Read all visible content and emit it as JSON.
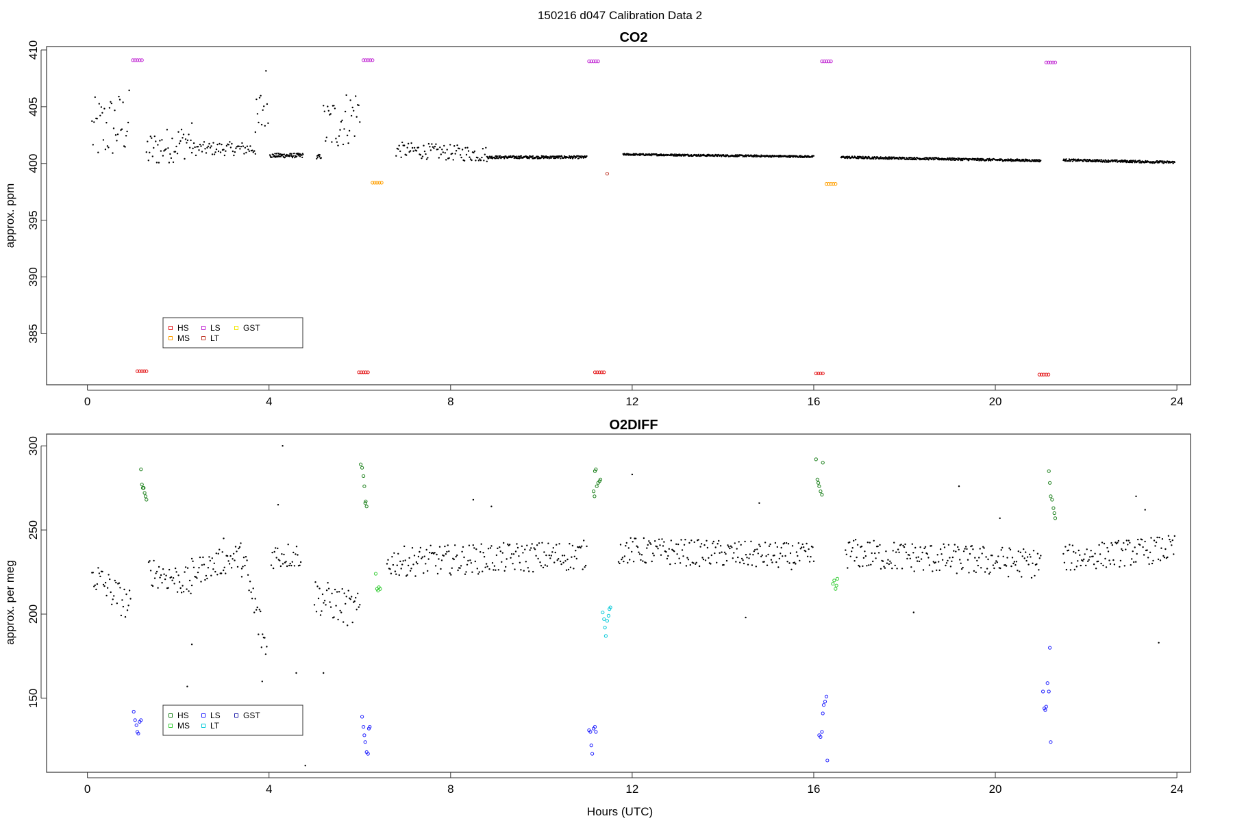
{
  "page_title": "150216   d047   Calibration Data 2",
  "chart_data": [
    {
      "type": "scatter",
      "title": "CO2",
      "xlabel": "",
      "ylabel": "approx. ppm",
      "xlim": [
        -0.9,
        24.3
      ],
      "ylim": [
        380.5,
        410.3
      ],
      "xticks": [
        0,
        4,
        8,
        12,
        16,
        20,
        24
      ],
      "yticks": [
        385,
        390,
        395,
        400,
        405,
        410
      ],
      "grid": false,
      "legend_position": "bottom-left",
      "legend": [
        {
          "label": "HS",
          "color": "#e41a1c"
        },
        {
          "label": "MS",
          "color": "#ff9f00"
        },
        {
          "label": "LS",
          "color": "#c026d3"
        },
        {
          "label": "LT",
          "color": "#c0392b"
        },
        {
          "label": "GST",
          "color": "#f2e600"
        }
      ],
      "series": [
        {
          "name": "HS",
          "color": "#e41a1c",
          "marker": "circle",
          "points": [
            [
              1.1,
              381.7
            ],
            [
              1.15,
              381.7
            ],
            [
              1.2,
              381.7
            ],
            [
              1.25,
              381.7
            ],
            [
              1.3,
              381.7
            ],
            [
              5.98,
              381.6
            ],
            [
              6.03,
              381.6
            ],
            [
              6.08,
              381.6
            ],
            [
              6.13,
              381.6
            ],
            [
              6.18,
              381.6
            ],
            [
              11.18,
              381.6
            ],
            [
              11.23,
              381.6
            ],
            [
              11.28,
              381.6
            ],
            [
              11.33,
              381.6
            ],
            [
              11.38,
              381.6
            ],
            [
              16.05,
              381.5
            ],
            [
              16.1,
              381.5
            ],
            [
              16.15,
              381.5
            ],
            [
              16.2,
              381.5
            ],
            [
              20.97,
              381.4
            ],
            [
              21.02,
              381.4
            ],
            [
              21.07,
              381.4
            ],
            [
              21.12,
              381.4
            ],
            [
              21.17,
              381.4
            ]
          ]
        },
        {
          "name": "MS",
          "color": "#ff9f00",
          "marker": "circle",
          "points": [
            [
              6.28,
              398.3
            ],
            [
              6.33,
              398.3
            ],
            [
              6.38,
              398.3
            ],
            [
              6.43,
              398.3
            ],
            [
              6.48,
              398.3
            ],
            [
              16.28,
              398.2
            ],
            [
              16.33,
              398.2
            ],
            [
              16.38,
              398.2
            ],
            [
              16.43,
              398.2
            ],
            [
              16.48,
              398.2
            ]
          ]
        },
        {
          "name": "LS",
          "color": "#c026d3",
          "marker": "circle",
          "points": [
            [
              1.0,
              409.1
            ],
            [
              1.05,
              409.1
            ],
            [
              1.1,
              409.1
            ],
            [
              1.15,
              409.1
            ],
            [
              1.2,
              409.1
            ],
            [
              6.08,
              409.1
            ],
            [
              6.13,
              409.1
            ],
            [
              6.18,
              409.1
            ],
            [
              6.23,
              409.1
            ],
            [
              6.28,
              409.1
            ],
            [
              11.05,
              409.0
            ],
            [
              11.1,
              409.0
            ],
            [
              11.15,
              409.0
            ],
            [
              11.2,
              409.0
            ],
            [
              11.25,
              409.0
            ],
            [
              16.18,
              409.0
            ],
            [
              16.23,
              409.0
            ],
            [
              16.28,
              409.0
            ],
            [
              16.33,
              409.0
            ],
            [
              16.38,
              409.0
            ],
            [
              21.12,
              408.9
            ],
            [
              21.17,
              408.9
            ],
            [
              21.22,
              408.9
            ],
            [
              21.27,
              408.9
            ],
            [
              21.32,
              408.9
            ]
          ]
        },
        {
          "name": "LT",
          "color": "#c0392b",
          "marker": "circle",
          "points": [
            [
              11.45,
              399.1
            ]
          ]
        },
        {
          "name": "GST",
          "color": "#f2e600",
          "marker": "circle",
          "points": []
        }
      ],
      "ambient": {
        "color": "#000000",
        "segments": [
          {
            "x": [
              0.1,
              0.92
            ],
            "mean": 403.2,
            "spread": 3.0,
            "trend": 0.8
          },
          {
            "x": [
              1.3,
              2.3
            ],
            "mean": 401.6,
            "spread": 1.6,
            "trend": 1.0
          },
          {
            "x": [
              2.3,
              3.7
            ],
            "mean": 401.3,
            "spread": 0.6,
            "trend": 0.0
          },
          {
            "x": [
              3.7,
              3.98
            ],
            "mean": 404.5,
            "spread": 3.0,
            "trend": 4.0
          },
          {
            "x": [
              4.02,
              4.75
            ],
            "mean": 400.7,
            "spread": 0.2,
            "trend": 0.0
          },
          {
            "x": [
              5.05,
              5.15
            ],
            "mean": 400.6,
            "spread": 0.2,
            "trend": 0.0
          },
          {
            "x": [
              5.2,
              6.0
            ],
            "mean": 403.8,
            "spread": 2.5,
            "trend": 1.5
          },
          {
            "x": [
              6.8,
              8.8
            ],
            "mean": 401.0,
            "spread": 0.7,
            "trend": -0.4
          },
          {
            "x": [
              8.8,
              11.0
            ],
            "mean": 400.55,
            "spread": 0.12,
            "trend": 0.0
          },
          {
            "x": [
              11.8,
              16.0
            ],
            "mean": 400.7,
            "spread": 0.08,
            "trend": -0.2
          },
          {
            "x": [
              16.6,
              21.0
            ],
            "mean": 400.4,
            "spread": 0.1,
            "trend": -0.3
          },
          {
            "x": [
              21.5,
              23.95
            ],
            "mean": 400.2,
            "spread": 0.1,
            "trend": -0.2
          }
        ]
      }
    },
    {
      "type": "scatter",
      "title": "O2DIFF",
      "xlabel": "Hours (UTC)",
      "ylabel": "approx. per meg",
      "xlim": [
        -0.9,
        24.3
      ],
      "ylim": [
        106,
        307
      ],
      "xticks": [
        0,
        4,
        8,
        12,
        16,
        20,
        24
      ],
      "yticks": [
        150,
        200,
        250,
        300
      ],
      "grid": false,
      "legend_position": "bottom-left",
      "legend": [
        {
          "label": "HS",
          "color": "#1a7f1a"
        },
        {
          "label": "MS",
          "color": "#33cc33"
        },
        {
          "label": "LS",
          "color": "#1f1fff"
        },
        {
          "label": "LT",
          "color": "#00c8d8"
        },
        {
          "label": "GST",
          "color": "#2222aa"
        }
      ],
      "series": [
        {
          "name": "HS",
          "color": "#1a7f1a",
          "marker": "circle",
          "points": [
            [
              1.18,
              286
            ],
            [
              1.2,
              277
            ],
            [
              1.22,
              275
            ],
            [
              1.26,
              272
            ],
            [
              1.28,
              270
            ],
            [
              1.3,
              268
            ],
            [
              1.24,
              275
            ],
            [
              6.02,
              289
            ],
            [
              6.05,
              287
            ],
            [
              6.08,
              282
            ],
            [
              6.1,
              276
            ],
            [
              6.13,
              267
            ],
            [
              6.15,
              264
            ],
            [
              6.12,
              266
            ],
            [
              11.18,
              285
            ],
            [
              11.2,
              286
            ],
            [
              11.22,
              276
            ],
            [
              11.25,
              278
            ],
            [
              11.28,
              279
            ],
            [
              11.3,
              280
            ],
            [
              11.15,
              273
            ],
            [
              11.17,
              270
            ],
            [
              16.05,
              292
            ],
            [
              16.08,
              280
            ],
            [
              16.1,
              278
            ],
            [
              16.12,
              276
            ],
            [
              16.15,
              273
            ],
            [
              16.18,
              271
            ],
            [
              16.2,
              290
            ],
            [
              21.18,
              285
            ],
            [
              21.2,
              278
            ],
            [
              21.22,
              270
            ],
            [
              21.25,
              268
            ],
            [
              21.28,
              263
            ],
            [
              21.3,
              260
            ],
            [
              21.32,
              257
            ]
          ]
        },
        {
          "name": "MS",
          "color": "#33cc33",
          "marker": "circle",
          "points": [
            [
              6.35,
              224
            ],
            [
              6.38,
              215
            ],
            [
              6.4,
              214
            ],
            [
              6.42,
              216
            ],
            [
              6.45,
              215
            ],
            [
              16.42,
              218
            ],
            [
              16.45,
              220
            ],
            [
              16.48,
              215
            ],
            [
              16.5,
              217
            ],
            [
              16.52,
              221
            ]
          ]
        },
        {
          "name": "LS",
          "color": "#1f1fff",
          "marker": "circle",
          "points": [
            [
              1.02,
              142
            ],
            [
              1.05,
              137
            ],
            [
              1.08,
              134
            ],
            [
              1.1,
              130
            ],
            [
              1.12,
              129
            ],
            [
              1.15,
              136
            ],
            [
              1.18,
              137
            ],
            [
              6.05,
              139
            ],
            [
              6.08,
              133
            ],
            [
              6.1,
              128
            ],
            [
              6.12,
              124
            ],
            [
              6.15,
              118
            ],
            [
              6.18,
              117
            ],
            [
              6.2,
              132
            ],
            [
              6.22,
              133
            ],
            [
              11.05,
              131
            ],
            [
              11.08,
              130
            ],
            [
              11.1,
              122
            ],
            [
              11.12,
              117
            ],
            [
              11.15,
              132
            ],
            [
              11.18,
              133
            ],
            [
              11.2,
              130
            ],
            [
              16.12,
              128
            ],
            [
              16.15,
              127
            ],
            [
              16.18,
              130
            ],
            [
              16.2,
              141
            ],
            [
              16.22,
              146
            ],
            [
              16.25,
              148
            ],
            [
              16.28,
              151
            ],
            [
              16.3,
              113
            ],
            [
              21.05,
              154
            ],
            [
              21.08,
              144
            ],
            [
              21.1,
              143
            ],
            [
              21.12,
              145
            ],
            [
              21.15,
              159
            ],
            [
              21.18,
              154
            ],
            [
              21.2,
              180
            ],
            [
              21.22,
              124
            ]
          ]
        },
        {
          "name": "LT",
          "color": "#00c8d8",
          "marker": "circle",
          "points": [
            [
              11.35,
              201
            ],
            [
              11.38,
              197
            ],
            [
              11.4,
              192
            ],
            [
              11.42,
              187
            ],
            [
              11.45,
              196
            ],
            [
              11.48,
              199
            ],
            [
              11.5,
              203
            ],
            [
              11.52,
              204
            ]
          ]
        },
        {
          "name": "GST",
          "color": "#2222aa",
          "marker": "circle",
          "points": []
        }
      ],
      "ambient": {
        "color": "#000000",
        "segments": [
          {
            "x": [
              0.1,
              0.95
            ],
            "mean": 214,
            "spread": 10,
            "trend": -20
          },
          {
            "x": [
              1.35,
              2.3
            ],
            "mean": 222,
            "spread": 9,
            "trend": -8
          },
          {
            "x": [
              2.3,
              3.4
            ],
            "mean": 230,
            "spread": 8,
            "trend": 10
          },
          {
            "x": [
              3.4,
              3.95
            ],
            "mean": 205,
            "spread": 14,
            "trend": -55
          },
          {
            "x": [
              4.05,
              4.7
            ],
            "mean": 235,
            "spread": 8,
            "trend": 0
          },
          {
            "x": [
              5.0,
              6.0
            ],
            "mean": 206,
            "spread": 11,
            "trend": -10
          },
          {
            "x": [
              6.6,
              11.0
            ],
            "mean": 233,
            "spread": 9,
            "trend": 4
          },
          {
            "x": [
              11.7,
              16.0
            ],
            "mean": 236,
            "spread": 8,
            "trend": -4
          },
          {
            "x": [
              16.7,
              21.0
            ],
            "mean": 233,
            "spread": 9,
            "trend": -6
          },
          {
            "x": [
              21.5,
              23.95
            ],
            "mean": 236,
            "spread": 8,
            "trend": 6
          }
        ],
        "outliers": [
          [
            4.3,
            300
          ],
          [
            4.8,
            110
          ],
          [
            4.2,
            265
          ],
          [
            4.6,
            165
          ],
          [
            5.2,
            165
          ],
          [
            12.0,
            283
          ],
          [
            14.5,
            198
          ],
          [
            14.8,
            266
          ],
          [
            18.2,
            201
          ],
          [
            19.2,
            276
          ],
          [
            23.1,
            270
          ],
          [
            23.6,
            183
          ],
          [
            8.5,
            268
          ],
          [
            8.9,
            264
          ],
          [
            2.2,
            157
          ],
          [
            2.3,
            182
          ],
          [
            3.0,
            245
          ],
          [
            3.85,
            160
          ],
          [
            23.3,
            262
          ],
          [
            20.1,
            257
          ]
        ]
      }
    }
  ]
}
